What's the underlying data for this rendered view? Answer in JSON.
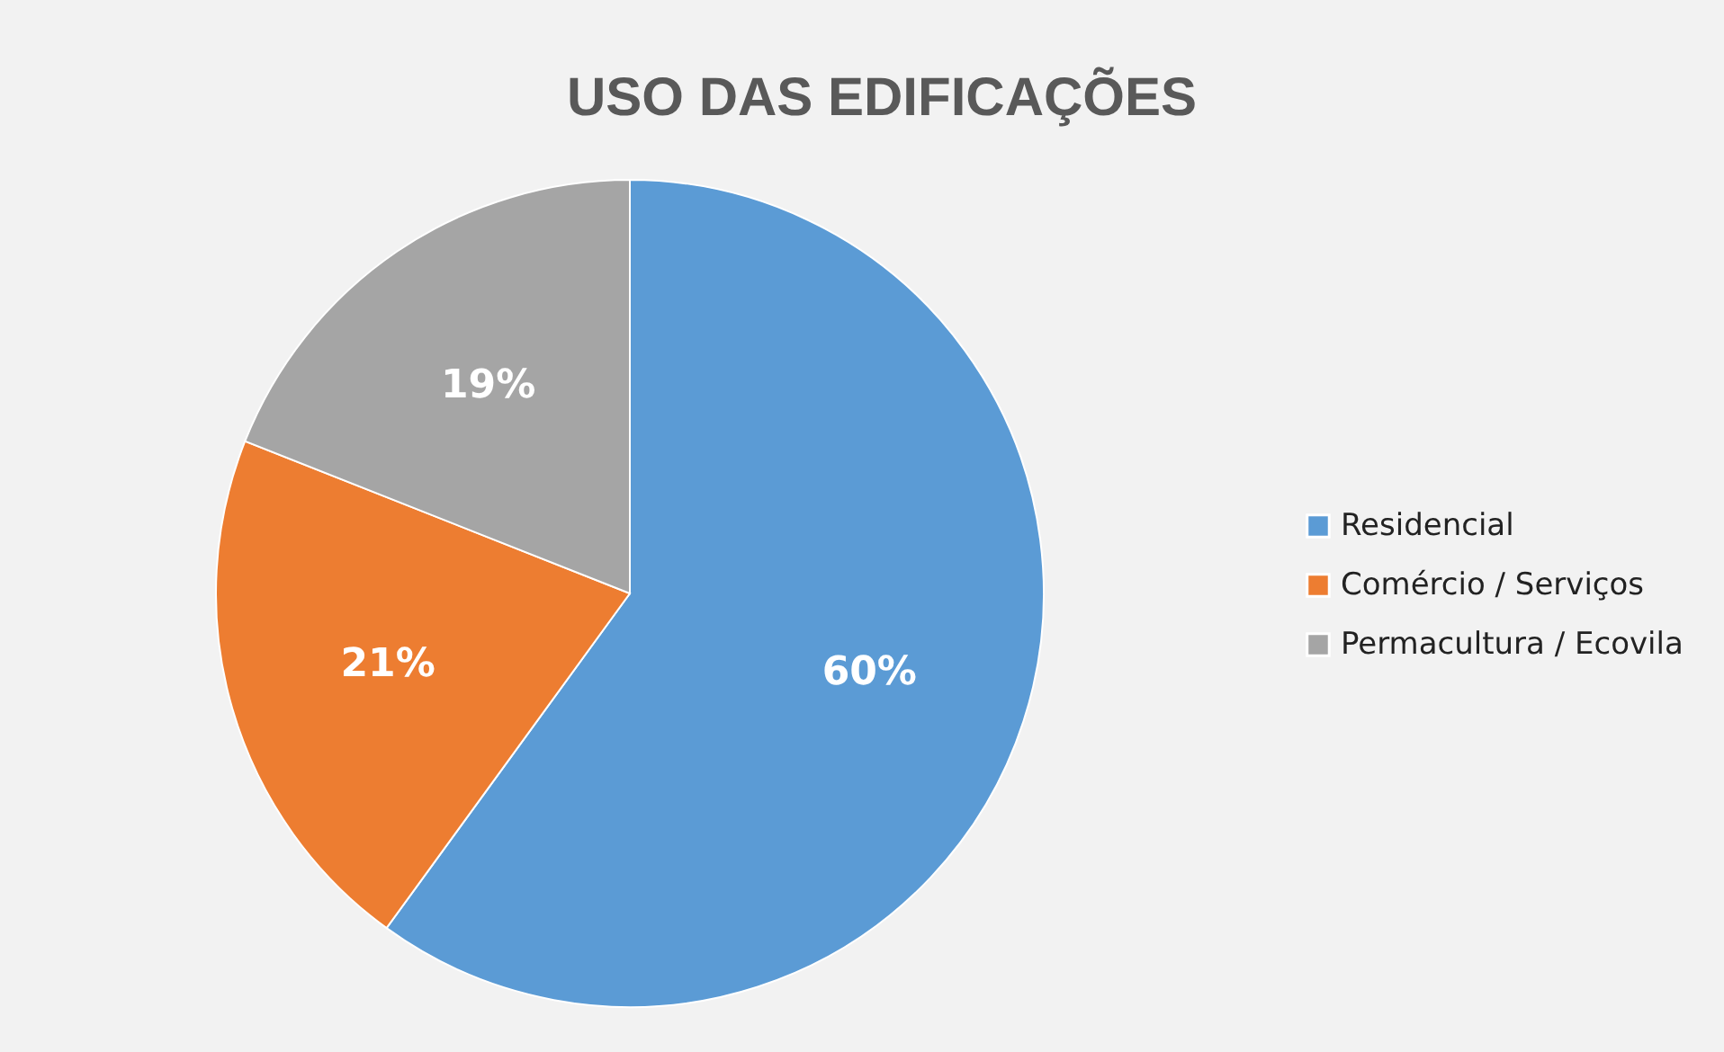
{
  "chart_data": {
    "type": "pie",
    "title": "USO DAS EDIFICAÇÕES",
    "categories": [
      "Residencial",
      "Comércio / Serviços",
      "Permacultura / Ecovila"
    ],
    "values": [
      60,
      21,
      19
    ],
    "colors": [
      "#5b9bd5",
      "#ed7d31",
      "#a5a5a5"
    ],
    "value_labels": [
      "60%",
      "21%",
      "19%"
    ],
    "legend": "right"
  }
}
